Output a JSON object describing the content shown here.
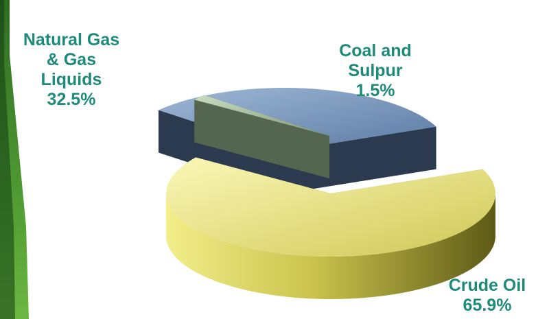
{
  "chart_data": {
    "type": "pie",
    "title": "",
    "slices": [
      {
        "label_lines": [
          "Crude Oil"
        ],
        "value_label": "65.9%",
        "value": 65.9,
        "color": "#d8d35a"
      },
      {
        "label_lines": [
          "Natural Gas",
          "& Gas",
          "Liquids"
        ],
        "value_label": "32.5%",
        "value": 32.5,
        "color": "#6f8eb4"
      },
      {
        "label_lines": [
          "Coal and",
          "Sulpur"
        ],
        "value_label": "1.5%",
        "value": 1.5,
        "color": "#8ca286"
      }
    ]
  },
  "colors": {
    "label_text": "#1e8a7a",
    "panel_dark": "#0f3d14",
    "panel_light": "#5da83a"
  }
}
